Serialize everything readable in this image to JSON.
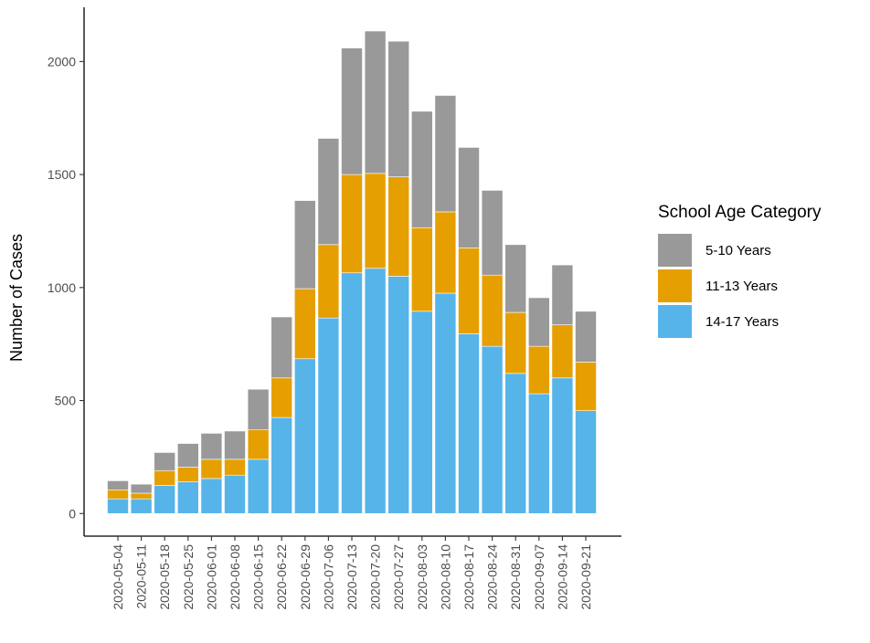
{
  "chart_data": {
    "type": "bar",
    "stacked": true,
    "title": "",
    "xlabel": "",
    "ylabel": "Number of Cases",
    "ylim": [
      -100,
      2240
    ],
    "yticks": [
      0,
      500,
      1000,
      1500,
      2000
    ],
    "grid": false,
    "legend_position": "right",
    "legend_title": "School Age Category",
    "categories": [
      "2020-05-04",
      "2020-05-11",
      "2020-05-18",
      "2020-05-25",
      "2020-06-01",
      "2020-06-08",
      "2020-06-15",
      "2020-06-22",
      "2020-06-29",
      "2020-07-06",
      "2020-07-13",
      "2020-07-20",
      "2020-07-27",
      "2020-08-03",
      "2020-08-10",
      "2020-08-17",
      "2020-08-24",
      "2020-08-31",
      "2020-09-07",
      "2020-09-14",
      "2020-09-21"
    ],
    "series": [
      {
        "name": "14-17 Years",
        "color": "#56B4E9",
        "values": [
          65,
          65,
          125,
          140,
          155,
          170,
          240,
          425,
          685,
          865,
          1065,
          1085,
          1050,
          895,
          975,
          795,
          740,
          620,
          530,
          600,
          455
        ]
      },
      {
        "name": "11-13 Years",
        "color": "#E69F00",
        "values": [
          40,
          25,
          65,
          65,
          85,
          70,
          130,
          175,
          310,
          325,
          435,
          420,
          440,
          370,
          360,
          380,
          315,
          270,
          210,
          235,
          215
        ]
      },
      {
        "name": "5-10 Years",
        "color": "#999999",
        "values": [
          40,
          40,
          80,
          105,
          115,
          125,
          180,
          270,
          390,
          470,
          560,
          630,
          600,
          515,
          515,
          445,
          375,
          300,
          215,
          265,
          225
        ]
      }
    ],
    "legend_order": [
      "5-10 Years",
      "11-13 Years",
      "14-17 Years"
    ]
  }
}
